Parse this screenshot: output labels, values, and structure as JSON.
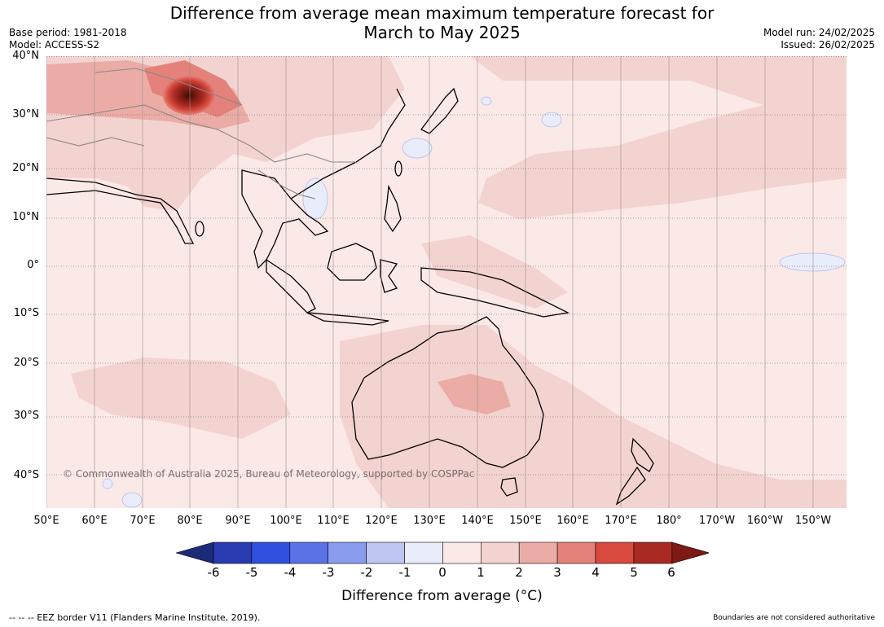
{
  "title": {
    "line1": "Difference from average mean maximum temperature forecast for",
    "line2": "March to May 2025"
  },
  "meta": {
    "base_period": "Base period: 1981-2018",
    "model": "Model: ACCESS-S2",
    "model_run": "Model run: 24/02/2025",
    "issued": "Issued: 26/02/2025"
  },
  "map": {
    "lat_labels": [
      "40°N",
      "30°N",
      "20°N",
      "10°N",
      "0°",
      "10°S",
      "20°S",
      "30°S",
      "40°S"
    ],
    "lon_labels": [
      "50°E",
      "60°E",
      "70°E",
      "80°E",
      "90°E",
      "100°E",
      "110°E",
      "120°E",
      "130°E",
      "140°E",
      "150°E",
      "160°E",
      "170°E",
      "180°",
      "170°W",
      "160°W",
      "150°W"
    ],
    "copyright": "© Commonwealth of Australia 2025, Bureau of Meteorology, supported by COSPPac",
    "colors": {
      "land": "#ffffff",
      "anom_0_1": "#fbe9e7",
      "anom_1_2": "#f3d3d0",
      "anom_2_3": "#ebaca6",
      "anom_3_4": "#e3817a",
      "anom_4_5": "#d84a3d",
      "anom_5_6": "#a82a22",
      "anom_6_plus": "#7d1a14",
      "anom_neg1_0": "#e8ecfb"
    }
  },
  "colorbar": {
    "ticks": [
      "-6",
      "-5",
      "-4",
      "-3",
      "-2",
      "-1",
      "0",
      "1",
      "2",
      "3",
      "4",
      "5",
      "6"
    ],
    "colors": [
      "#1c2a7a",
      "#2a3ab0",
      "#3050e0",
      "#5a72e6",
      "#8a9ced",
      "#bfc6f4",
      "#e8ecfb",
      "#fbe9e7",
      "#f3d3d0",
      "#ebaca6",
      "#e3817a",
      "#d84a3d",
      "#a82a22",
      "#7d1a14"
    ],
    "label": "Difference from average (°C)"
  },
  "footer": {
    "eez_note": "--  --  -- EEZ border V11 (Flanders Marine Institute, 2019).",
    "boundaries_note": "Boundaries are not considered authoritative"
  }
}
